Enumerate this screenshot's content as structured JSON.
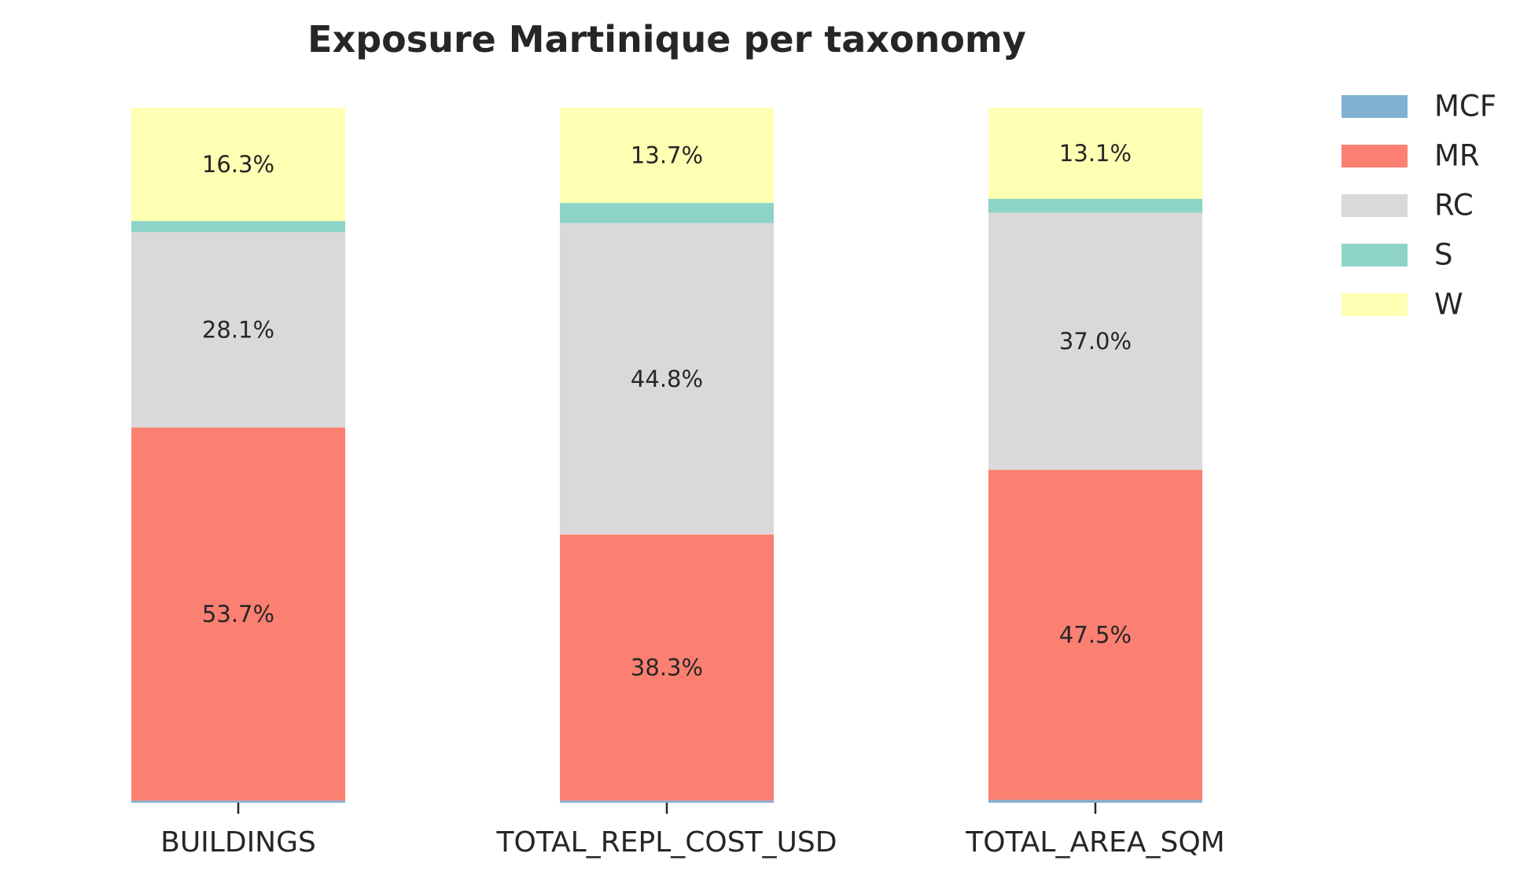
{
  "chart_data": {
    "type": "bar",
    "stacked": true,
    "title": "Exposure Martinique per taxonomy",
    "xlabel": "",
    "ylabel": "",
    "ylim": [
      0,
      100
    ],
    "grid": false,
    "legend_position": "top-right",
    "categories": [
      "BUILDINGS",
      "TOTAL_REPL_COST_USD",
      "TOTAL_AREA_SQM"
    ],
    "series": [
      {
        "name": "MCF",
        "color": "#80b1d3",
        "values": [
          0.3,
          0.3,
          0.4
        ],
        "labels": [
          "",
          "",
          ""
        ]
      },
      {
        "name": "MR",
        "color": "#fb8072",
        "values": [
          53.7,
          38.3,
          47.5
        ],
        "labels": [
          "53.7%",
          "38.3%",
          "47.5%"
        ]
      },
      {
        "name": "RC",
        "color": "#d9d9d9",
        "values": [
          28.1,
          44.8,
          37.0
        ],
        "labels": [
          "28.1%",
          "44.8%",
          "37.0%"
        ]
      },
      {
        "name": "S",
        "color": "#8dd3c7",
        "values": [
          1.6,
          2.9,
          2.0
        ],
        "labels": [
          "",
          "",
          ""
        ]
      },
      {
        "name": "W",
        "color": "#ffffb3",
        "values": [
          16.3,
          13.7,
          13.1
        ],
        "labels": [
          "16.3%",
          "13.7%",
          "13.1%"
        ]
      }
    ]
  }
}
